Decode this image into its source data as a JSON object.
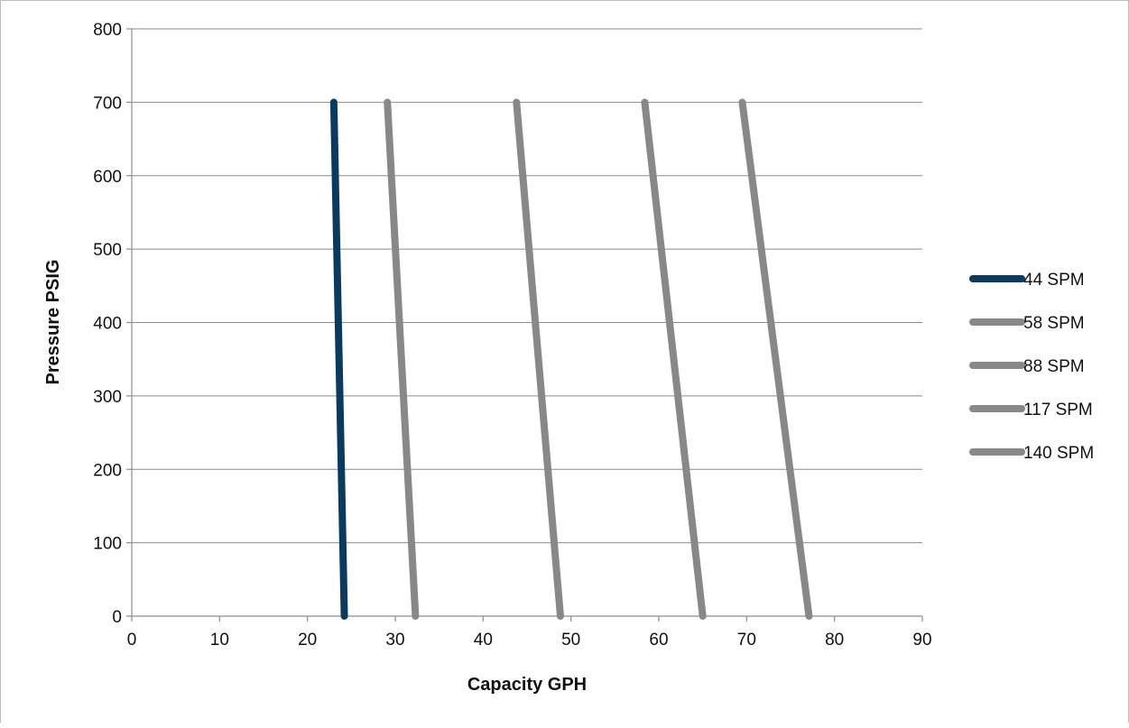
{
  "chart_data": {
    "type": "line",
    "title": "",
    "xlabel": "Capacity GPH",
    "ylabel": "Pressure PSIG",
    "xlim": [
      0,
      90
    ],
    "ylim": [
      0,
      800
    ],
    "xticks": [
      0,
      10,
      20,
      30,
      40,
      50,
      60,
      70,
      80,
      90
    ],
    "yticks": [
      0,
      100,
      200,
      300,
      400,
      500,
      600,
      700,
      800
    ],
    "grid": "horizontal",
    "legend_position": "right",
    "series": [
      {
        "name": "44 SPM",
        "color": "#0b3a5e",
        "points": [
          [
            24.2,
            0
          ],
          [
            23.0,
            700
          ]
        ]
      },
      {
        "name": "58 SPM",
        "color": "#888888",
        "points": [
          [
            32.3,
            0
          ],
          [
            29.1,
            700
          ]
        ]
      },
      {
        "name": "88 SPM",
        "color": "#888888",
        "points": [
          [
            48.8,
            0
          ],
          [
            43.8,
            700
          ]
        ]
      },
      {
        "name": "117 SPM",
        "color": "#888888",
        "points": [
          [
            65.0,
            0
          ],
          [
            58.4,
            700
          ]
        ]
      },
      {
        "name": "140 SPM",
        "color": "#888888",
        "points": [
          [
            77.1,
            0
          ],
          [
            69.5,
            700
          ]
        ]
      }
    ]
  }
}
